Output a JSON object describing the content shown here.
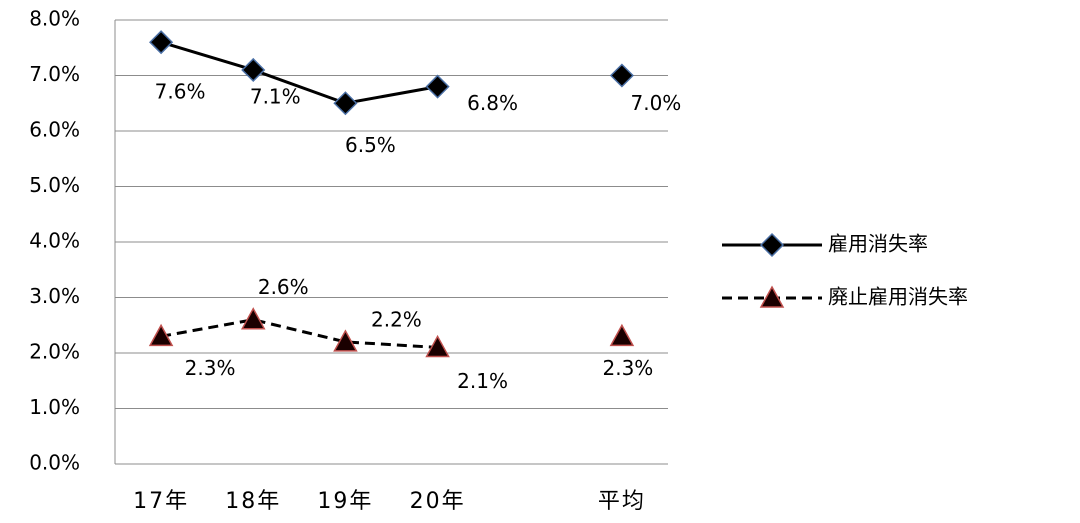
{
  "chart_data": {
    "type": "line",
    "categories": [
      "17年",
      "18年",
      "19年",
      "20年",
      null,
      "平均"
    ],
    "series": [
      {
        "name": "雇用消失率",
        "color": "#000000",
        "marker": "diamond",
        "dashed": false,
        "values": [
          7.6,
          7.1,
          6.5,
          6.8,
          null,
          7.0
        ],
        "value_labels": [
          "7.6%",
          "7.1%",
          "6.5%",
          "6.8%",
          null,
          "7.0%"
        ]
      },
      {
        "name": "廃止雇用消失率",
        "color": "#000000",
        "marker": "triangle",
        "dashed": true,
        "values": [
          2.3,
          2.6,
          2.2,
          2.1,
          null,
          2.3
        ],
        "value_labels": [
          "2.3%",
          "2.6%",
          "2.2%",
          "2.1%",
          null,
          "2.3%"
        ]
      }
    ],
    "ylim": [
      0,
      8
    ],
    "yticks": [
      {
        "value": 0,
        "label": "0.0%"
      },
      {
        "value": 1,
        "label": "1.0%"
      },
      {
        "value": 2,
        "label": "2.0%"
      },
      {
        "value": 3,
        "label": "3.0%"
      },
      {
        "value": 4,
        "label": "4.0%"
      },
      {
        "value": 5,
        "label": "5.0%"
      },
      {
        "value": 6,
        "label": "6.0%"
      },
      {
        "value": 7,
        "label": "7.0%"
      },
      {
        "value": 8,
        "label": "8.0%"
      }
    ],
    "grid": true,
    "legend": "right"
  }
}
